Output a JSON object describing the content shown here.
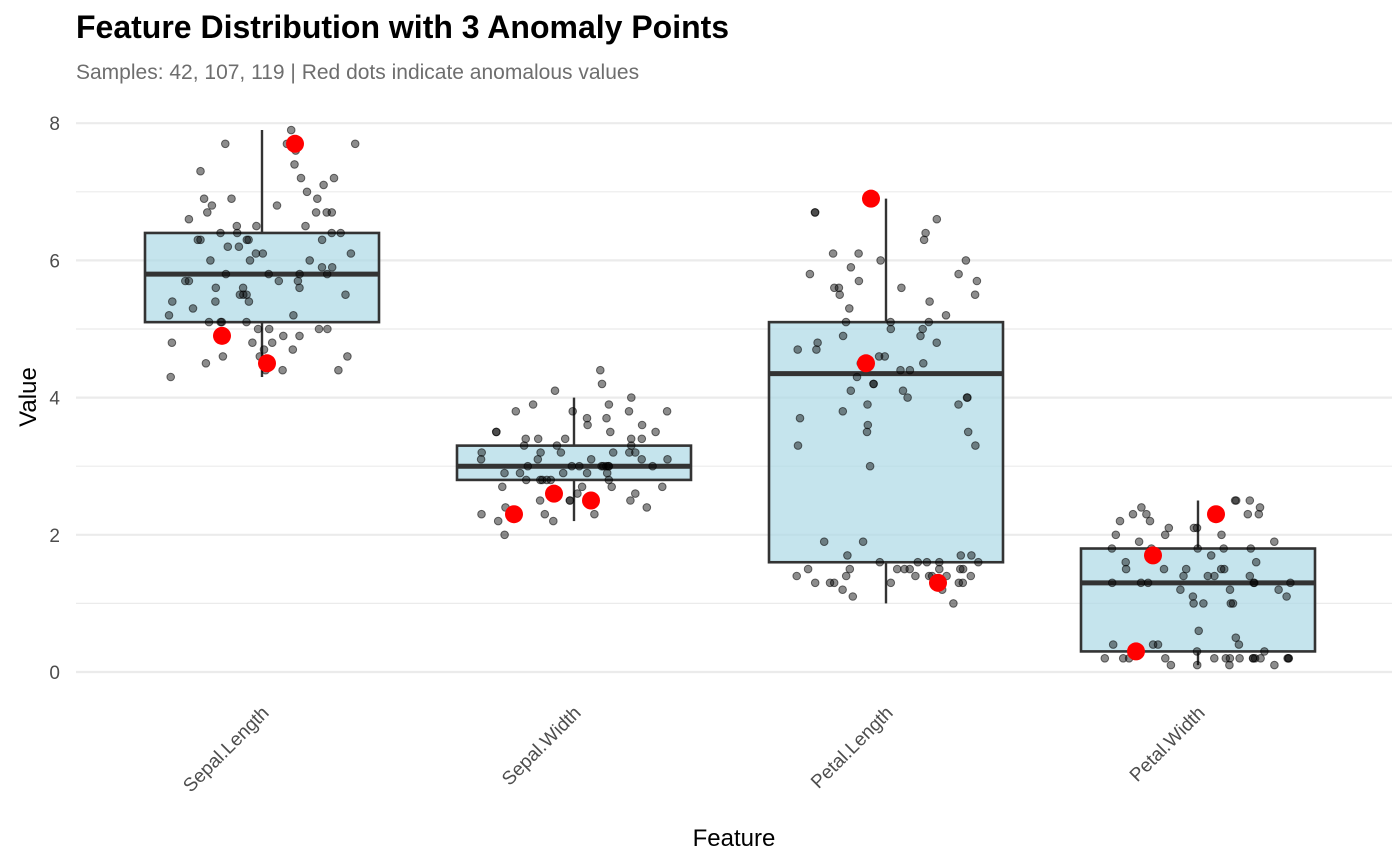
{
  "title": "Feature Distribution with 3 Anomaly Points",
  "subtitle": "Samples: 42, 107, 119 | Red dots indicate anomalous values",
  "colors": {
    "box_fill": "#add8e6",
    "box_stroke": "#333333",
    "point": "#000000",
    "anomaly": "#ff0000",
    "grid": "#ebebeb"
  },
  "chart_data": {
    "type": "box",
    "title": "Feature Distribution with 3 Anomaly Points",
    "subtitle": "Samples: 42, 107, 119 | Red dots indicate anomalous values",
    "xlabel": "Feature",
    "ylabel": "Value",
    "ylim": [
      -0.4,
      8.2
    ],
    "yticks": [
      0,
      2,
      4,
      6,
      8
    ],
    "grid": true,
    "categories": [
      "Sepal.Length",
      "Sepal.Width",
      "Petal.Length",
      "Petal.Width"
    ],
    "boxes": [
      {
        "category": "Sepal.Length",
        "min": 4.3,
        "q1": 5.1,
        "median": 5.8,
        "q3": 6.4,
        "max": 7.9
      },
      {
        "category": "Sepal.Width",
        "min": 2.2,
        "q1": 2.8,
        "median": 3.0,
        "q3": 3.3,
        "max": 4.0
      },
      {
        "category": "Petal.Length",
        "min": 1.0,
        "q1": 1.6,
        "median": 4.35,
        "q3": 5.1,
        "max": 6.9
      },
      {
        "category": "Petal.Width",
        "min": 0.1,
        "q1": 0.3,
        "median": 1.3,
        "q3": 1.8,
        "max": 2.5
      }
    ],
    "anomalies": [
      {
        "category": "Sepal.Length",
        "values": [
          7.7,
          4.9,
          4.5
        ]
      },
      {
        "category": "Sepal.Width",
        "values": [
          2.6,
          2.3,
          2.5
        ]
      },
      {
        "category": "Petal.Length",
        "values": [
          6.9,
          4.5,
          1.3
        ]
      },
      {
        "category": "Petal.Width",
        "values": [
          2.3,
          1.7,
          0.3
        ]
      }
    ],
    "points": [
      {
        "category": "Sepal.Length",
        "values": [
          7.9,
          7.7,
          7.7,
          7.7,
          7.6,
          7.4,
          7.3,
          7.2,
          7.2,
          7.1,
          7.0,
          6.9,
          6.9,
          6.9,
          6.8,
          6.8,
          6.7,
          6.7,
          6.7,
          6.7,
          6.6,
          6.5,
          6.5,
          6.5,
          6.4,
          6.4,
          6.4,
          6.4,
          6.3,
          6.3,
          6.3,
          6.3,
          6.3,
          6.2,
          6.2,
          6.1,
          6.1,
          6.1,
          6.0,
          6.0,
          6.0,
          5.9,
          5.9,
          5.8,
          5.8,
          5.8,
          5.8,
          5.7,
          5.7,
          5.7,
          5.7,
          5.6,
          5.6,
          5.6,
          5.5,
          5.5,
          5.5,
          5.5,
          5.4,
          5.4,
          5.4,
          5.3,
          5.2,
          5.2,
          5.1,
          5.1,
          5.1,
          5.1,
          5.0,
          5.0,
          5.0,
          5.0,
          4.9,
          4.9,
          4.8,
          4.8,
          4.8,
          4.7,
          4.7,
          4.6,
          4.6,
          4.6,
          4.5,
          4.4,
          4.4,
          4.4,
          4.3
        ]
      },
      {
        "category": "Sepal.Width",
        "values": [
          4.4,
          4.2,
          4.1,
          4.0,
          3.9,
          3.9,
          3.8,
          3.8,
          3.8,
          3.8,
          3.7,
          3.7,
          3.6,
          3.6,
          3.5,
          3.5,
          3.5,
          3.5,
          3.4,
          3.4,
          3.4,
          3.4,
          3.4,
          3.3,
          3.3,
          3.3,
          3.2,
          3.2,
          3.2,
          3.2,
          3.2,
          3.2,
          3.1,
          3.1,
          3.1,
          3.1,
          3.1,
          3.0,
          3.0,
          3.0,
          3.0,
          3.0,
          3.0,
          3.0,
          3.0,
          3.0,
          2.9,
          2.9,
          2.9,
          2.9,
          2.9,
          2.8,
          2.8,
          2.8,
          2.8,
          2.8,
          2.8,
          2.7,
          2.7,
          2.7,
          2.7,
          2.6,
          2.6,
          2.5,
          2.5,
          2.5,
          2.5,
          2.4,
          2.4,
          2.3,
          2.3,
          2.3,
          2.2,
          2.2,
          2.0
        ]
      },
      {
        "category": "Petal.Length",
        "values": [
          6.7,
          6.7,
          6.6,
          6.4,
          6.3,
          6.1,
          6.1,
          6.0,
          6.0,
          5.9,
          5.8,
          5.8,
          5.7,
          5.7,
          5.6,
          5.6,
          5.6,
          5.5,
          5.5,
          5.4,
          5.3,
          5.2,
          5.1,
          5.1,
          5.1,
          5.0,
          5.0,
          4.9,
          4.9,
          4.8,
          4.8,
          4.7,
          4.7,
          4.6,
          4.6,
          4.5,
          4.5,
          4.4,
          4.4,
          4.3,
          4.2,
          4.2,
          4.1,
          4.1,
          4.0,
          4.0,
          4.0,
          3.9,
          3.9,
          3.8,
          3.7,
          3.6,
          3.5,
          3.5,
          3.3,
          3.3,
          3.0,
          1.9,
          1.9,
          1.7,
          1.7,
          1.7,
          1.6,
          1.6,
          1.6,
          1.6,
          1.6,
          1.5,
          1.5,
          1.5,
          1.5,
          1.5,
          1.5,
          1.5,
          1.5,
          1.4,
          1.4,
          1.4,
          1.4,
          1.4,
          1.4,
          1.4,
          1.3,
          1.3,
          1.3,
          1.3,
          1.3,
          1.3,
          1.2,
          1.2,
          1.1,
          1.0
        ]
      },
      {
        "category": "Petal.Width",
        "values": [
          2.5,
          2.5,
          2.5,
          2.4,
          2.4,
          2.3,
          2.3,
          2.3,
          2.3,
          2.2,
          2.2,
          2.1,
          2.1,
          2.1,
          2.0,
          2.0,
          2.0,
          1.9,
          1.9,
          1.8,
          1.8,
          1.8,
          1.8,
          1.8,
          1.7,
          1.6,
          1.6,
          1.5,
          1.5,
          1.5,
          1.5,
          1.5,
          1.4,
          1.4,
          1.4,
          1.4,
          1.3,
          1.3,
          1.3,
          1.3,
          1.3,
          1.3,
          1.2,
          1.2,
          1.2,
          1.1,
          1.1,
          1.0,
          1.0,
          1.0,
          1.0,
          0.6,
          0.5,
          0.4,
          0.4,
          0.4,
          0.4,
          0.3,
          0.3,
          0.3,
          0.2,
          0.2,
          0.2,
          0.2,
          0.2,
          0.2,
          0.2,
          0.2,
          0.2,
          0.2,
          0.2,
          0.2,
          0.2,
          0.2,
          0.2,
          0.1,
          0.1,
          0.1,
          0.1
        ]
      }
    ]
  }
}
